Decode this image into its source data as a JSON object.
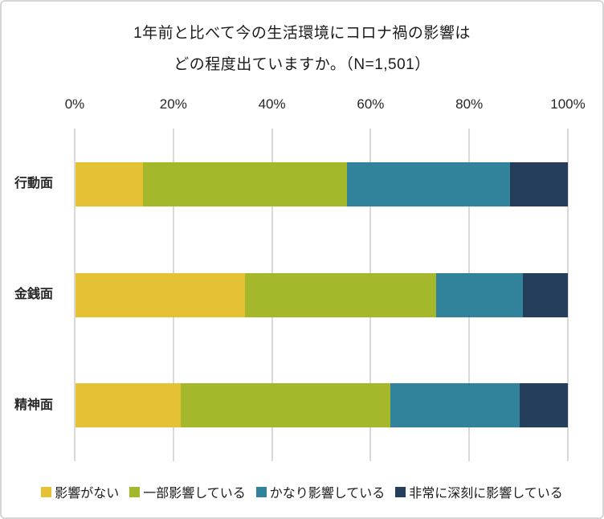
{
  "title": {
    "line1": "1年前と比べて今の生活環境にコロナ禍の影響は",
    "line2": "どの程度出ていますか。（N=1,501）"
  },
  "colors": {
    "gridline": "#D9D9D9",
    "border": "#D6D6D6",
    "text": "#262626",
    "title_text": "#1b1b1b"
  },
  "chart_data": {
    "type": "bar",
    "orientation": "horizontal-stacked",
    "title": "1年前と比べて今の生活環境にコロナ禍の影響はどの程度出ていますか。（N=1,501）",
    "sample_size_label": "N=1,501",
    "categories": [
      "行動面",
      "金銭面",
      "精神面"
    ],
    "series": [
      {
        "name": "影響がない",
        "color": "#E5C136",
        "values": [
          13.7,
          34.4,
          21.4
        ]
      },
      {
        "name": "一部影響している",
        "color": "#A5B72B",
        "values": [
          41.4,
          38.9,
          42.6
        ]
      },
      {
        "name": "かなり影響している",
        "color": "#31839B",
        "values": [
          33.2,
          17.5,
          26.2
        ]
      },
      {
        "name": "非常に深刻に影響している",
        "color": "#253E5C",
        "values": [
          11.7,
          9.2,
          9.8
        ]
      }
    ],
    "xlim": [
      0,
      100
    ],
    "x_ticks": [
      "0%",
      "20%",
      "40%",
      "60%",
      "80%",
      "100%"
    ],
    "grid": true,
    "legend_position": "bottom"
  }
}
